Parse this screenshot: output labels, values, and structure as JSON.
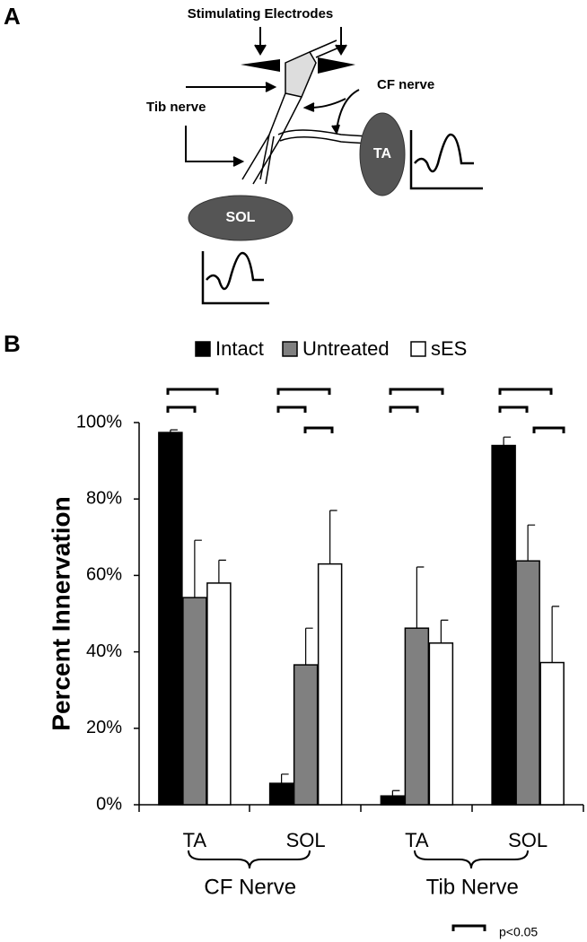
{
  "diagram": {
    "panel_label": "A",
    "electrodes_label": "Stimulating Electrodes",
    "tib_label": "Tib nerve",
    "cf_label": "CF nerve",
    "ta_label": "TA",
    "sol_label": "SOL"
  },
  "chart_data": {
    "type": "bar",
    "panel_label": "B",
    "ylabel": "Percent Innervation",
    "categories": [
      "TA",
      "SOL",
      "TA",
      "SOL"
    ],
    "group_labels": [
      "CF Nerve",
      "Tib Nerve"
    ],
    "series": [
      {
        "name": "Intact",
        "color": "#000000",
        "values": [
          97.4,
          5.6,
          2.3,
          94
        ],
        "errors": [
          0.7,
          2.4,
          1.4,
          2.2
        ]
      },
      {
        "name": "Untreated",
        "color": "#808080",
        "values": [
          54.2,
          36.6,
          46.2,
          63.8
        ],
        "errors": [
          15,
          9.6,
          16,
          9.4
        ]
      },
      {
        "name": "sES",
        "color": "#ffffff",
        "values": [
          58,
          63,
          42.3,
          37.2
        ],
        "errors": [
          6,
          14,
          6,
          14.7
        ]
      }
    ],
    "ylim": [
      0,
      100
    ],
    "yticks": [
      {
        "value": 0,
        "label": "0%"
      },
      {
        "value": 20,
        "label": "20%"
      },
      {
        "value": 40,
        "label": "40%"
      },
      {
        "value": 60,
        "label": "60%"
      },
      {
        "value": 80,
        "label": "80%"
      },
      {
        "value": 100,
        "label": "100%"
      }
    ],
    "grid": false,
    "annotation": "p<0.05"
  }
}
